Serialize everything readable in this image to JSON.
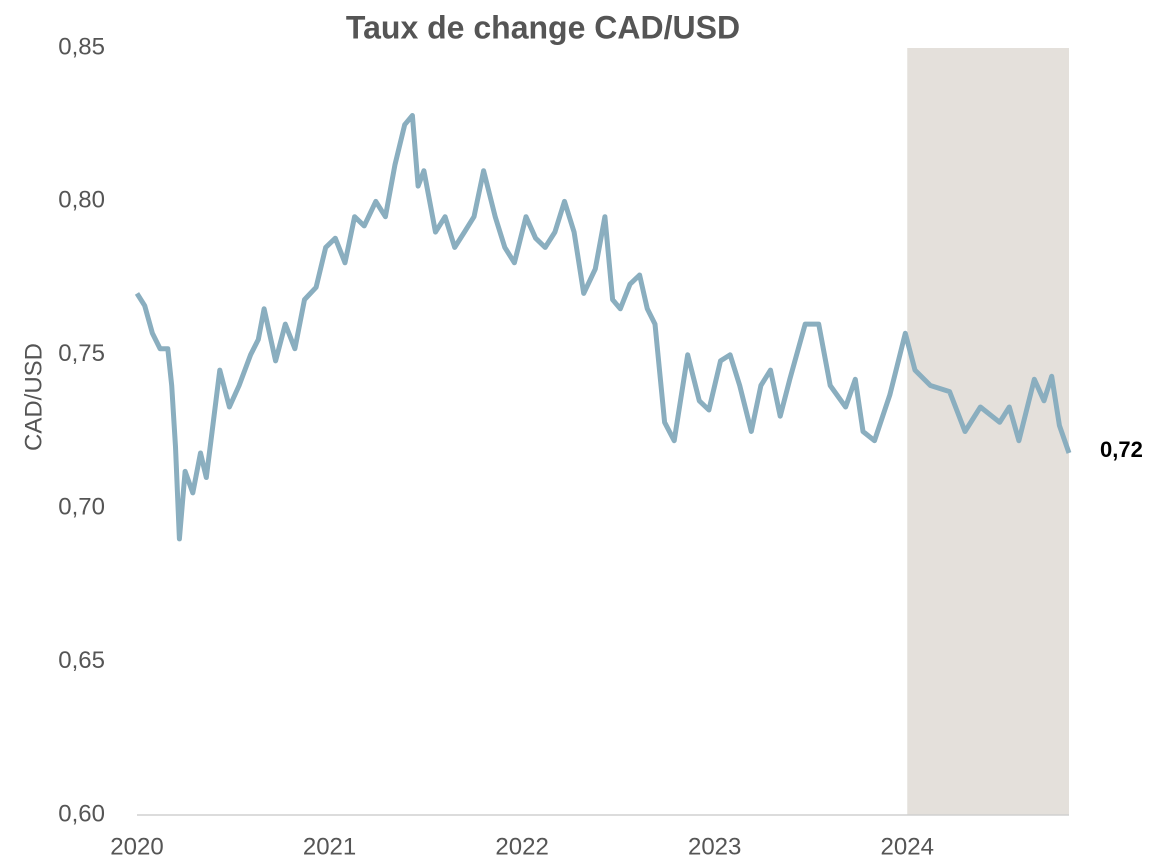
{
  "chart_data": {
    "type": "line",
    "title": "Taux de change CAD/USD",
    "y_label": "CAD/USD",
    "x": [
      2020.0,
      2020.04,
      2020.08,
      2020.12,
      2020.16,
      2020.18,
      2020.2,
      2020.22,
      2020.25,
      2020.29,
      2020.33,
      2020.36,
      2020.39,
      2020.43,
      2020.48,
      2020.53,
      2020.59,
      2020.63,
      2020.66,
      2020.72,
      2020.77,
      2020.82,
      2020.87,
      2020.93,
      2020.98,
      2021.03,
      2021.08,
      2021.13,
      2021.18,
      2021.24,
      2021.29,
      2021.34,
      2021.39,
      2021.43,
      2021.46,
      2021.49,
      2021.55,
      2021.6,
      2021.65,
      2021.7,
      2021.75,
      2021.8,
      2021.86,
      2021.91,
      2021.96,
      2022.02,
      2022.07,
      2022.12,
      2022.17,
      2022.22,
      2022.27,
      2022.32,
      2022.38,
      2022.43,
      2022.47,
      2022.51,
      2022.56,
      2022.61,
      2022.65,
      2022.69,
      2022.74,
      2022.79,
      2022.86,
      2022.92,
      2022.97,
      2023.03,
      2023.08,
      2023.13,
      2023.19,
      2023.24,
      2023.29,
      2023.34,
      2023.39,
      2023.47,
      2023.54,
      2023.6,
      2023.68,
      2023.73,
      2023.77,
      2023.83,
      2023.91,
      2023.99,
      2024.04,
      2024.12,
      2024.22,
      2024.3,
      2024.38,
      2024.48,
      2024.53,
      2024.58,
      2024.66,
      2024.71,
      2024.75,
      2024.79,
      2024.84
    ],
    "series": [
      {
        "name": "CAD/USD",
        "color": "#8aaebf",
        "values": [
          0.77,
          0.766,
          0.757,
          0.752,
          0.752,
          0.74,
          0.72,
          0.69,
          0.712,
          0.705,
          0.718,
          0.71,
          0.725,
          0.745,
          0.733,
          0.74,
          0.75,
          0.755,
          0.765,
          0.748,
          0.76,
          0.752,
          0.768,
          0.772,
          0.785,
          0.788,
          0.78,
          0.795,
          0.792,
          0.8,
          0.795,
          0.812,
          0.825,
          0.828,
          0.805,
          0.81,
          0.79,
          0.795,
          0.785,
          0.79,
          0.795,
          0.81,
          0.795,
          0.785,
          0.78,
          0.795,
          0.788,
          0.785,
          0.79,
          0.8,
          0.79,
          0.77,
          0.778,
          0.795,
          0.768,
          0.765,
          0.773,
          0.776,
          0.765,
          0.76,
          0.728,
          0.722,
          0.75,
          0.735,
          0.732,
          0.748,
          0.75,
          0.74,
          0.725,
          0.74,
          0.745,
          0.73,
          0.742,
          0.76,
          0.76,
          0.74,
          0.733,
          0.742,
          0.725,
          0.722,
          0.737,
          0.757,
          0.745,
          0.74,
          0.738,
          0.725,
          0.733,
          0.728,
          0.733,
          0.722,
          0.742,
          0.735,
          0.743,
          0.727,
          0.718
        ]
      }
    ],
    "xlim": [
      2020,
      2024.84
    ],
    "xticks": [
      2020,
      2021,
      2022,
      2023,
      2024
    ],
    "ylim": [
      0.6,
      0.85
    ],
    "yticks": [
      {
        "value": 0.6,
        "label": "0,60"
      },
      {
        "value": 0.65,
        "label": "0,65"
      },
      {
        "value": 0.7,
        "label": "0,70"
      },
      {
        "value": 0.75,
        "label": "0,75"
      },
      {
        "value": 0.8,
        "label": "0,80"
      },
      {
        "value": 0.85,
        "label": "0,85"
      }
    ],
    "shaded_region": [
      2024,
      2024.84
    ],
    "shade_color": "#e4e0db",
    "end_label": {
      "x": 2024.84,
      "value": 0.718,
      "label": "0,72"
    }
  }
}
